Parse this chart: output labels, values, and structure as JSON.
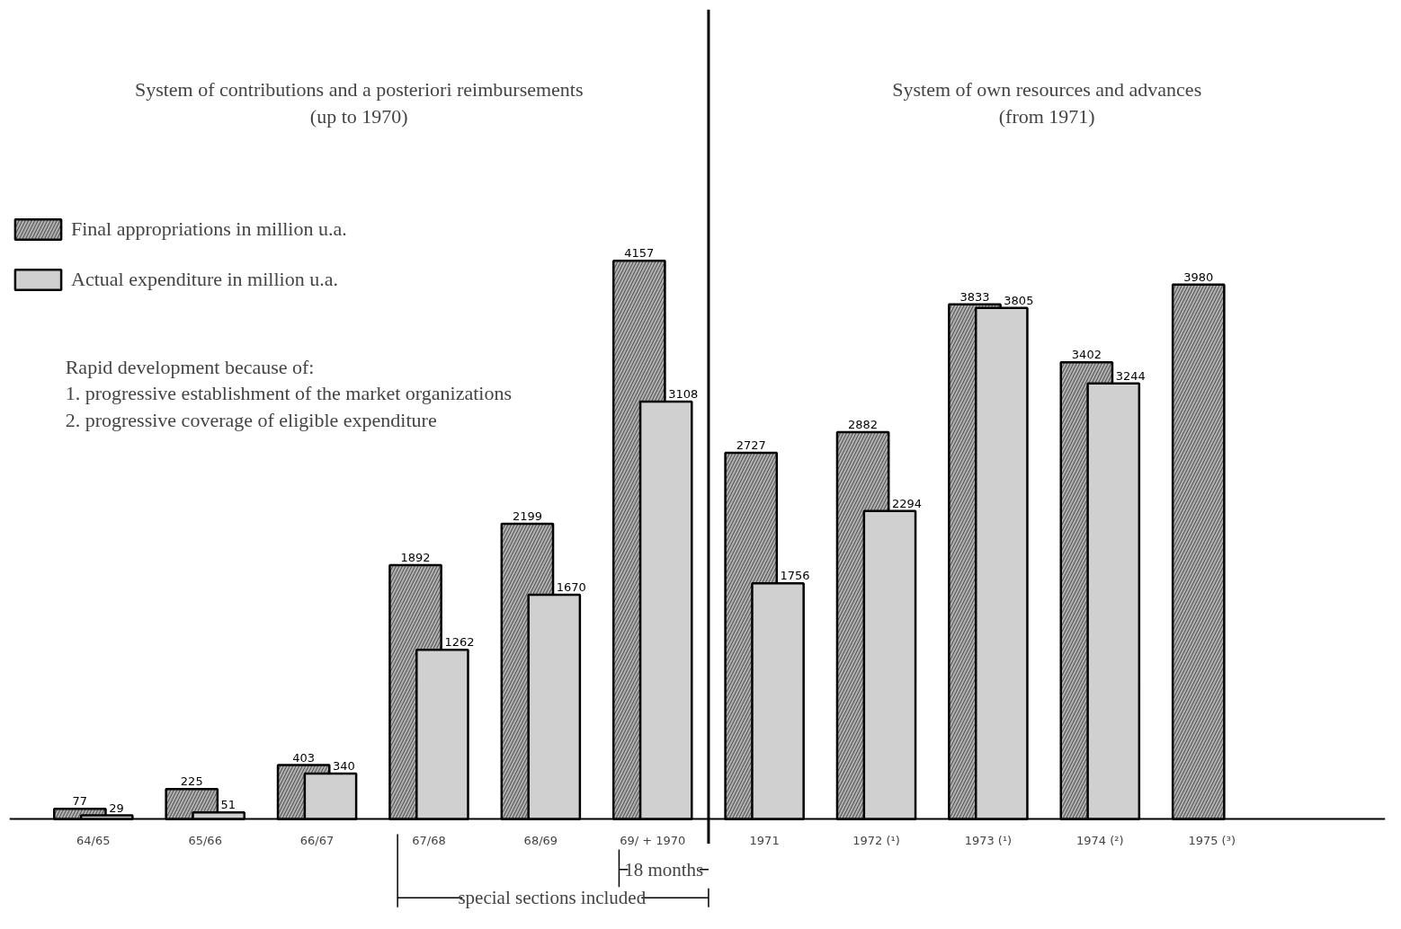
{
  "chart_data": {
    "type": "bar",
    "title": "System of contributions and a posteriori reimbursements\n(up to 1970)",
    "subtitle": "System of own resources and advances\n(from 1971)",
    "categories": [
      "64/65",
      "65/66",
      "66/67",
      "67/68",
      "68/69",
      "69/ + 1970",
      "1971",
      "1972 (¹)",
      "1973 (¹)",
      "1974 (²)",
      "1975 (³)"
    ],
    "series": [
      {
        "name": "Final appropriations in million u.a.",
        "color": "#b0b0b0",
        "values": [
          77,
          225,
          403,
          1892,
          2199,
          4157,
          2727,
          2882,
          3833,
          3402,
          3980
        ]
      },
      {
        "name": "Actual expenditure in million u.a.",
        "color": "#d0d0d0",
        "values": [
          29,
          51,
          340,
          1262,
          1670,
          3108,
          1756,
          2294,
          3805,
          3244,
          null
        ]
      }
    ],
    "data_labels": true,
    "legend": "top left",
    "grid": false,
    "annotations": [
      "Rapid development because of:",
      "1. progressive establishment of the market organizations",
      "2. progressive coverage of eligible expenditure",
      "18 months",
      "special sections included"
    ]
  }
}
